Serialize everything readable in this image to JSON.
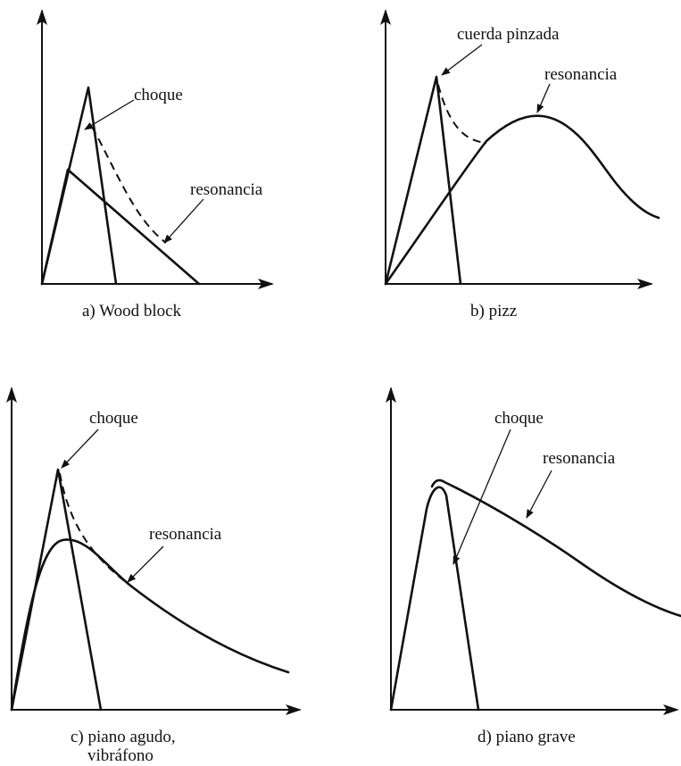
{
  "panels": {
    "a": {
      "caption": "a)  Wood block",
      "labels": {
        "shock": "choque",
        "resonance": "resonancia"
      }
    },
    "b": {
      "caption": "b)  pizz",
      "labels": {
        "plucked": "cuerda  pinzada",
        "resonance": "resonancia"
      }
    },
    "c": {
      "caption_line1": "c)  piano  agudo,",
      "caption_line2": "vibráfono",
      "labels": {
        "shock": "choque",
        "resonance": "resonancia"
      }
    },
    "d": {
      "caption": "d)  piano  grave",
      "labels": {
        "shock": "choque",
        "resonance": "resonancia"
      }
    }
  }
}
